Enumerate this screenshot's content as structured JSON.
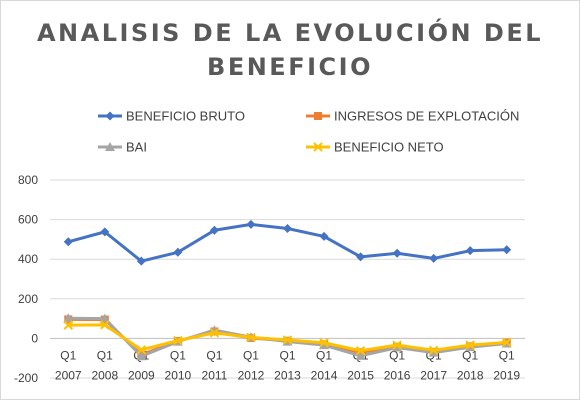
{
  "chart_data": {
    "type": "line",
    "title_line1": "ANALISIS DE LA EVOLUCIÓN DEL",
    "title_line2": "BENEFICIO",
    "categories": [
      {
        "q": "Q1",
        "year": "2007"
      },
      {
        "q": "Q1",
        "year": "2008"
      },
      {
        "q": "Q1",
        "year": "2009"
      },
      {
        "q": "Q1",
        "year": "2010"
      },
      {
        "q": "Q1",
        "year": "2011"
      },
      {
        "q": "Q1",
        "year": "2012"
      },
      {
        "q": "Q1",
        "year": "2013"
      },
      {
        "q": "Q1",
        "year": "2014"
      },
      {
        "q": "Q1",
        "year": "2015"
      },
      {
        "q": "Q1",
        "year": "2016"
      },
      {
        "q": "Q1",
        "year": "2017"
      },
      {
        "q": "Q1",
        "year": "2018"
      },
      {
        "q": "Q1",
        "year": "2019"
      }
    ],
    "ylim": [
      -200,
      800
    ],
    "yticks": [
      -200,
      0,
      200,
      400,
      600,
      800
    ],
    "grid": true,
    "legend_position": "top",
    "series": [
      {
        "name": "BENEFICIO BRUTO",
        "color": "#4472C4",
        "marker": "diamond",
        "values": [
          488,
          538,
          390,
          435,
          546,
          576,
          555,
          515,
          412,
          430,
          404,
          443,
          448
        ]
      },
      {
        "name": "INGRESOS DE EXPLOTACIÓN",
        "color": "#ED7D31",
        "marker": "square",
        "values": [
          96,
          95,
          -83,
          -13,
          35,
          2,
          -12,
          -30,
          -70,
          -42,
          -68,
          -40,
          -22
        ]
      },
      {
        "name": "BAI",
        "color": "#A5A5A5",
        "marker": "triangle",
        "values": [
          102,
          100,
          -90,
          -16,
          42,
          6,
          -16,
          -34,
          -88,
          -46,
          -72,
          -44,
          -26
        ]
      },
      {
        "name": "BENEFICIO NETO",
        "color": "#FFC000",
        "marker": "x",
        "values": [
          67,
          68,
          -58,
          -11,
          28,
          5,
          -8,
          -22,
          -62,
          -34,
          -60,
          -34,
          -20
        ]
      }
    ]
  }
}
